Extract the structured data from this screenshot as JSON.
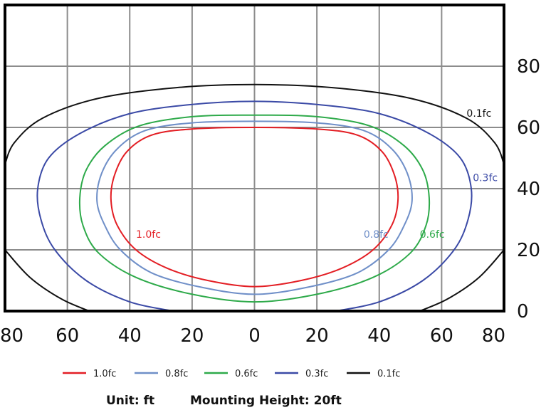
{
  "chart_data": {
    "type": "line",
    "xlim": [
      -80,
      80
    ],
    "ylim": [
      0,
      100
    ],
    "x_ticks": [
      -80,
      -60,
      -40,
      -20,
      0,
      20,
      40,
      60,
      80
    ],
    "x_tick_labels": [
      "80",
      "60",
      "40",
      "20",
      "0",
      "20",
      "40",
      "60",
      "80"
    ],
    "y_ticks": [
      0,
      20,
      40,
      60,
      80
    ],
    "y_tick_labels": [
      "0",
      "20",
      "40",
      "60",
      "80"
    ],
    "grid": true,
    "legend_position": "bottom",
    "series": [
      {
        "name": "1.0fc",
        "color": "#e31e24",
        "points": [
          [
            0,
            8
          ],
          [
            15,
            10
          ],
          [
            28,
            14
          ],
          [
            38,
            20
          ],
          [
            44,
            28
          ],
          [
            46,
            36
          ],
          [
            45,
            44
          ],
          [
            41,
            52
          ],
          [
            33,
            57.5
          ],
          [
            20,
            59.5
          ],
          [
            0,
            60
          ],
          [
            -20,
            59.5
          ],
          [
            -33,
            57.5
          ],
          [
            -41,
            52
          ],
          [
            -45,
            44
          ],
          [
            -46,
            36
          ],
          [
            -44,
            28
          ],
          [
            -38,
            20
          ],
          [
            -28,
            14
          ],
          [
            -15,
            10
          ],
          [
            0,
            8
          ]
        ]
      },
      {
        "name": "0.8fc",
        "color": "#6f8fc8",
        "points": [
          [
            0,
            5.5
          ],
          [
            18,
            8
          ],
          [
            33,
            12.5
          ],
          [
            43,
            20
          ],
          [
            48,
            28
          ],
          [
            50.5,
            36
          ],
          [
            49,
            45
          ],
          [
            44,
            53
          ],
          [
            35,
            59
          ],
          [
            20,
            61.5
          ],
          [
            0,
            62
          ],
          [
            -20,
            61.5
          ],
          [
            -35,
            59
          ],
          [
            -44,
            53
          ],
          [
            -49,
            45
          ],
          [
            -50.5,
            36
          ],
          [
            -48,
            28
          ],
          [
            -43,
            20
          ],
          [
            -33,
            12.5
          ],
          [
            -18,
            8
          ],
          [
            0,
            5.5
          ]
        ]
      },
      {
        "name": "0.6fc",
        "color": "#2eaa4a",
        "points": [
          [
            0,
            3
          ],
          [
            20,
            5.5
          ],
          [
            38,
            11
          ],
          [
            50,
            19
          ],
          [
            55,
            28
          ],
          [
            56,
            37
          ],
          [
            54,
            46
          ],
          [
            48,
            54
          ],
          [
            37,
            60.5
          ],
          [
            20,
            63.5
          ],
          [
            0,
            64
          ],
          [
            -20,
            63.5
          ],
          [
            -37,
            60.5
          ],
          [
            -48,
            54
          ],
          [
            -54,
            46
          ],
          [
            -56,
            37
          ],
          [
            -55,
            28
          ],
          [
            -50,
            19
          ],
          [
            -38,
            11
          ],
          [
            -20,
            5.5
          ],
          [
            0,
            3
          ]
        ]
      },
      {
        "name": "0.3fc",
        "color": "#3b4aa6",
        "points": [
          [
            26,
            0
          ],
          [
            40,
            3
          ],
          [
            54,
            10
          ],
          [
            64,
            20
          ],
          [
            68.5,
            30
          ],
          [
            69.5,
            40
          ],
          [
            66,
            50
          ],
          [
            56,
            58
          ],
          [
            40,
            64.5
          ],
          [
            20,
            67.5
          ],
          [
            0,
            68.5
          ],
          [
            -20,
            67.5
          ],
          [
            -40,
            64.5
          ],
          [
            -56,
            58
          ],
          [
            -66,
            50
          ],
          [
            -69.5,
            40
          ],
          [
            -68.5,
            30
          ],
          [
            -64,
            20
          ],
          [
            -54,
            10
          ],
          [
            -40,
            3
          ],
          [
            -26,
            0
          ]
        ]
      },
      {
        "name": "0.1fc",
        "color": "#111111",
        "points": [
          [
            53,
            0
          ],
          [
            62,
            4
          ],
          [
            72,
            11
          ],
          [
            80,
            20
          ]
        ],
        "points_upper": [
          [
            80,
            48
          ],
          [
            77,
            55
          ],
          [
            68,
            63
          ],
          [
            50,
            69.5
          ],
          [
            25,
            73
          ],
          [
            0,
            74
          ],
          [
            -25,
            73
          ],
          [
            -50,
            69.5
          ],
          [
            -68,
            63
          ],
          [
            -77,
            55
          ],
          [
            -80,
            48
          ]
        ],
        "points_left": [
          [
            -80,
            20
          ],
          [
            -72,
            11
          ],
          [
            -62,
            4
          ],
          [
            -53,
            0
          ]
        ]
      }
    ],
    "curve_labels": [
      {
        "text": "1.0fc",
        "x": -38,
        "y": 24,
        "color": "#e31e24"
      },
      {
        "text": "0.8fc",
        "x": 35,
        "y": 24,
        "color": "#6f8fc8"
      },
      {
        "text": "0.6fc",
        "x": 53,
        "y": 24,
        "color": "#2eaa4a"
      },
      {
        "text": "0.3fc",
        "x": 70,
        "y": 42.5,
        "color": "#3b4aa6"
      },
      {
        "text": "0.1fc",
        "x": 68,
        "y": 63.5,
        "color": "#111111"
      }
    ]
  },
  "legend": [
    {
      "label": "1.0fc",
      "color": "#e31e24"
    },
    {
      "label": "0.8fc",
      "color": "#6f8fc8"
    },
    {
      "label": "0.6fc",
      "color": "#2eaa4a"
    },
    {
      "label": "0.3fc",
      "color": "#3b4aa6"
    },
    {
      "label": "0.1fc",
      "color": "#111111"
    }
  ],
  "footer": {
    "unit_text": "Unit: ft",
    "mounting_text": "Mounting Height: 20ft"
  }
}
